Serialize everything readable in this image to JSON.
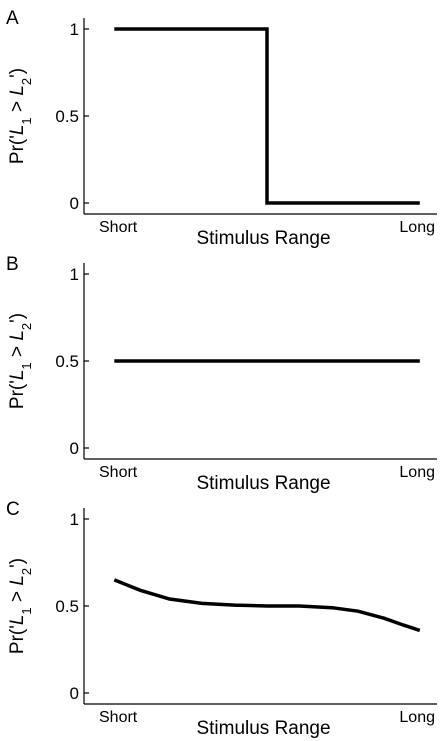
{
  "chart_data": [
    {
      "panel": "A",
      "type": "line",
      "categories": [
        "Short",
        "Long"
      ],
      "xlabel": "Stimulus Range",
      "ylabel": {
        "prefix": "Pr('",
        "l1": "L",
        "l1_sub": "1",
        "mid": " > ",
        "l2": "L",
        "l2_sub": "2",
        "suffix": "')"
      },
      "ylim": [
        0,
        1
      ],
      "yticks": [
        {
          "value": 0,
          "label": "0"
        },
        {
          "value": 0.5,
          "label": "0.5"
        },
        {
          "value": 1,
          "label": "1"
        }
      ],
      "xlim": [
        0,
        1
      ],
      "grid": false,
      "series": [
        {
          "x": [
            0.05,
            0.52,
            0.52,
            0.99
          ],
          "y": [
            1,
            1,
            0,
            0
          ]
        }
      ]
    },
    {
      "panel": "B",
      "type": "line",
      "categories": [
        "Short",
        "Long"
      ],
      "xlabel": "Stimulus Range",
      "ylabel": {
        "prefix": "Pr('",
        "l1": "L",
        "l1_sub": "1",
        "mid": " > ",
        "l2": "L",
        "l2_sub": "2",
        "suffix": "')"
      },
      "ylim": [
        0,
        1
      ],
      "yticks": [
        {
          "value": 0,
          "label": "0"
        },
        {
          "value": 0.5,
          "label": "0.5"
        },
        {
          "value": 1,
          "label": "1"
        }
      ],
      "xlim": [
        0,
        1
      ],
      "grid": false,
      "series": [
        {
          "x": [
            0.05,
            0.99
          ],
          "y": [
            0.5,
            0.5
          ]
        }
      ]
    },
    {
      "panel": "C",
      "type": "line",
      "categories": [
        "Short",
        "Long"
      ],
      "xlabel": "Stimulus Range",
      "ylabel": {
        "prefix": "Pr('",
        "l1": "L",
        "l1_sub": "1",
        "mid": " > ",
        "l2": "L",
        "l2_sub": "2",
        "suffix": "')"
      },
      "ylim": [
        0,
        1
      ],
      "yticks": [
        {
          "value": 0,
          "label": "0"
        },
        {
          "value": 0.5,
          "label": "0.5"
        },
        {
          "value": 1,
          "label": "1"
        }
      ],
      "xlim": [
        0,
        1
      ],
      "grid": false,
      "series": [
        {
          "x": [
            0.05,
            0.13,
            0.22,
            0.32,
            0.42,
            0.52,
            0.62,
            0.72,
            0.8,
            0.88,
            0.94,
            0.99
          ],
          "y": [
            0.65,
            0.59,
            0.54,
            0.515,
            0.505,
            0.5,
            0.5,
            0.49,
            0.47,
            0.43,
            0.39,
            0.36
          ]
        }
      ]
    }
  ]
}
